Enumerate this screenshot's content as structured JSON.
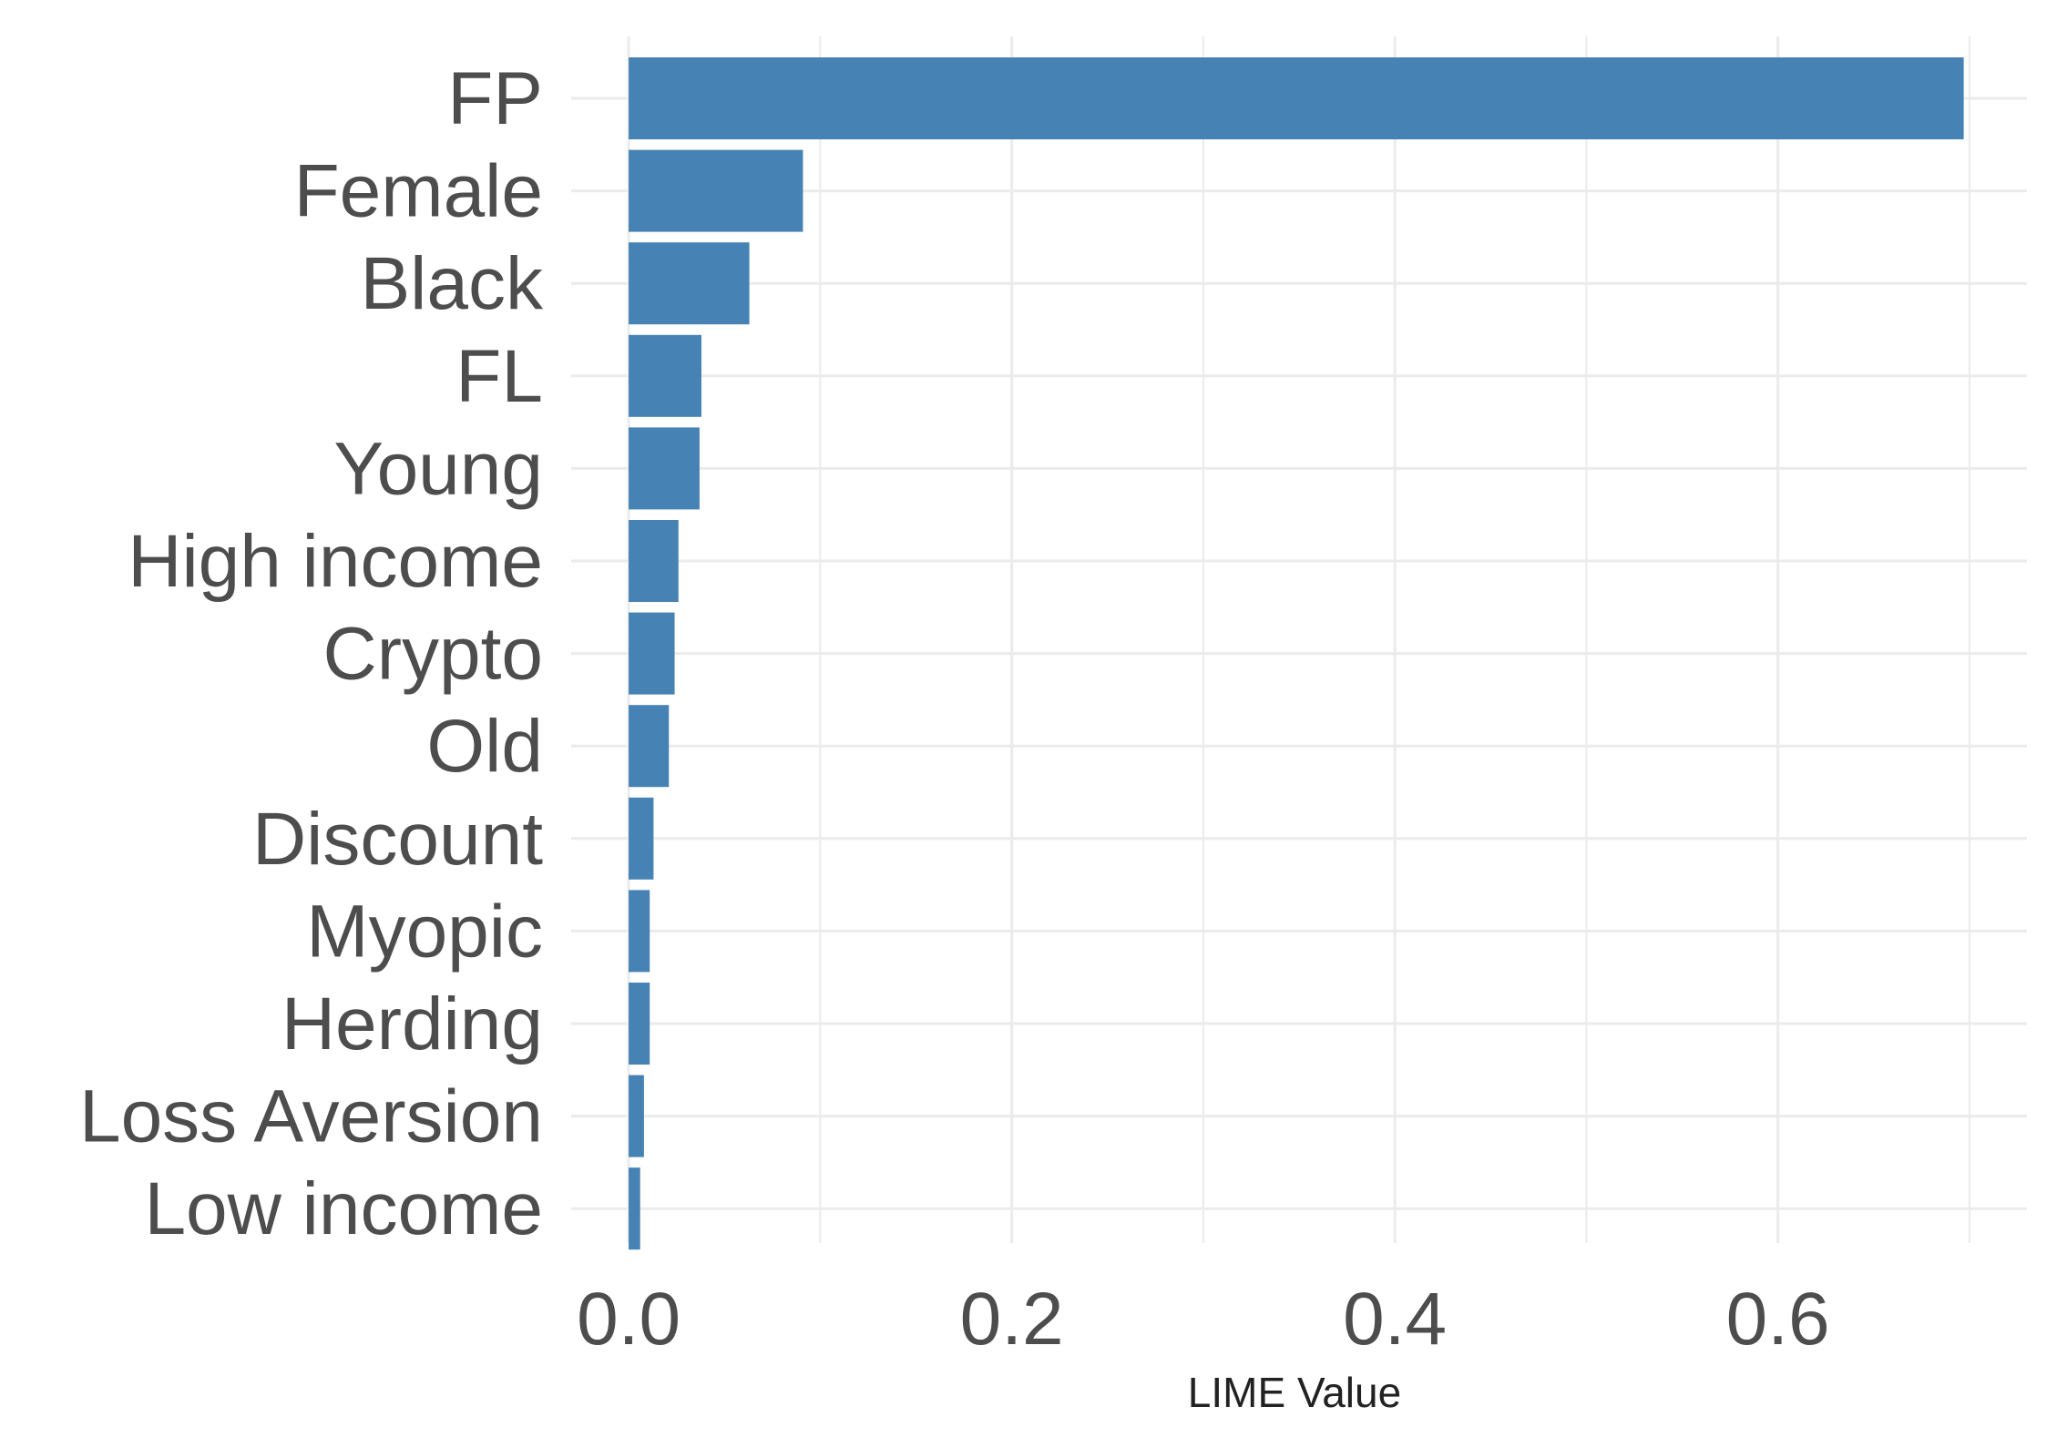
{
  "chart_data": {
    "type": "bar",
    "orientation": "horizontal",
    "categories": [
      "FP",
      "Female",
      "Black",
      "FL",
      "Young",
      "High income",
      "Crypto",
      "Old",
      "Discount",
      "Myopic",
      "Herding",
      "Loss Aversion",
      "Low income"
    ],
    "values": [
      0.697,
      0.091,
      0.063,
      0.038,
      0.037,
      0.026,
      0.024,
      0.021,
      0.013,
      0.011,
      0.011,
      0.008,
      0.006
    ],
    "title": "",
    "xlabel": "LIME Value",
    "ylabel": "",
    "xlim": [
      -0.03,
      0.73
    ],
    "x_ticks": [
      0.0,
      0.2,
      0.4,
      0.6
    ],
    "x_tick_labels": [
      "0.0",
      "0.2",
      "0.4",
      "0.6"
    ],
    "grid": true,
    "legend": "none",
    "colors": {
      "bar": "#4682B4",
      "grid": "#EBEBEB",
      "text": "#4D4D4D",
      "axis_title": "#222222"
    }
  }
}
